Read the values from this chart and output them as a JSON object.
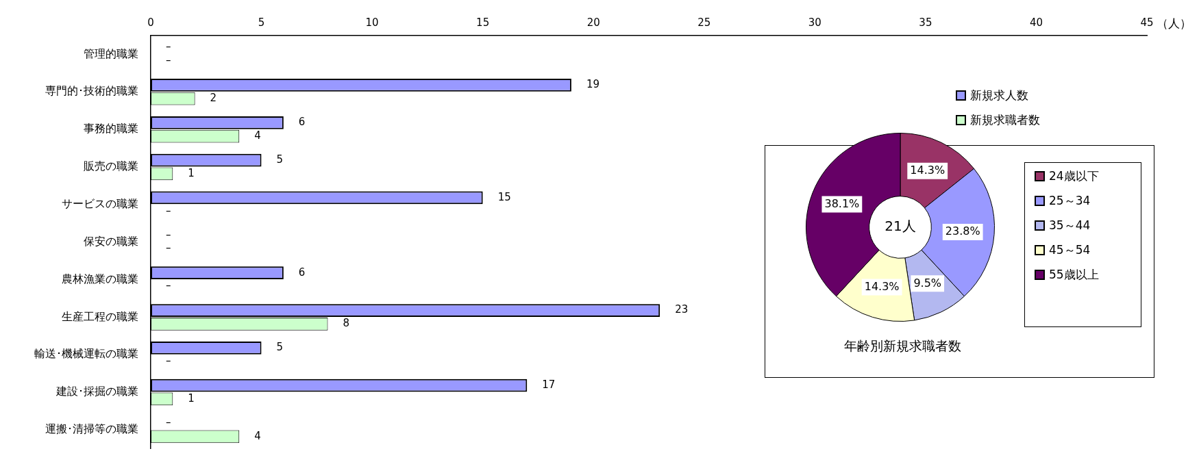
{
  "chart_data": [
    {
      "type": "bar",
      "orientation": "horizontal",
      "categories": [
        "管理的職業",
        "専門的･技術的職業",
        "事務的職業",
        "販売の職業",
        "サービスの職業",
        "保安の職業",
        "農林漁業の職業",
        "生産工程の職業",
        "輸送･機械運転の職業",
        "建設･採掘の職業",
        "運搬･清掃等の職業"
      ],
      "series": [
        {
          "name": "新規求人数",
          "color": "#9999ff",
          "values": [
            0,
            19,
            6,
            5,
            15,
            0,
            6,
            23,
            5,
            17,
            0
          ],
          "value_labels": [
            "–",
            "19",
            "6",
            "5",
            "15",
            "–",
            "6",
            "23",
            "5",
            "17",
            "–"
          ]
        },
        {
          "name": "新規求職者数",
          "color": "#ccffcc",
          "values": [
            0,
            2,
            4,
            1,
            0,
            0,
            0,
            8,
            0,
            1,
            4
          ],
          "value_labels": [
            "–",
            "2",
            "4",
            "1",
            "–",
            "–",
            "–",
            "8",
            "–",
            "1",
            "4"
          ]
        }
      ],
      "xlim": [
        0,
        45
      ],
      "xticks": [
        0,
        5,
        10,
        15,
        20,
        25,
        30,
        35,
        40,
        45
      ],
      "xlabel": "（人）",
      "legend": "right",
      "grid": false
    },
    {
      "type": "donut",
      "title": "年齢別新規求職者数",
      "categories": [
        "24歳以下",
        "25～34",
        "35～44",
        "45～54",
        "55歳以上"
      ],
      "values": [
        14.3,
        23.8,
        9.5,
        14.3,
        38.1
      ],
      "colors": [
        "#993366",
        "#9999ff",
        "#b3b8f0",
        "#ffffcc",
        "#660066"
      ],
      "value_labels": [
        "14.3%",
        "23.8%",
        "9.5%",
        "14.3%",
        "38.1%"
      ],
      "annotations": [
        "21人"
      ],
      "legend": "right"
    }
  ]
}
